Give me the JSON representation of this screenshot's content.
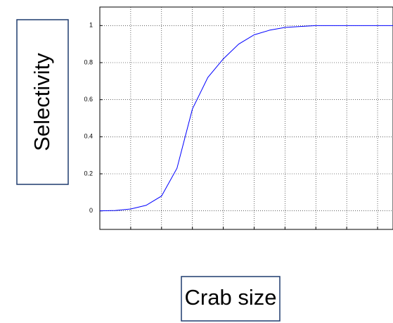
{
  "chart_data": {
    "type": "line",
    "x_label": "Crab size",
    "y_label": "Selectivity",
    "x": [
      0,
      0.5,
      1,
      1.5,
      2,
      2.5,
      3,
      3.5,
      4,
      4.5,
      5,
      5.5,
      6,
      6.5,
      7,
      7.5,
      8,
      8.5,
      9,
      9.5
    ],
    "series": [
      {
        "color": "#0000ff",
        "values": [
          0,
          0.002,
          0.01,
          0.03,
          0.08,
          0.23,
          0.55,
          0.72,
          0.82,
          0.9,
          0.95,
          0.975,
          0.99,
          0.995,
          1,
          1,
          1,
          1,
          1,
          1
        ]
      }
    ],
    "xlim": [
      0,
      9.5
    ],
    "xticks": [
      1,
      2,
      3,
      4,
      5,
      6,
      7,
      8,
      9
    ],
    "ylim": [
      -0.1,
      1.1
    ],
    "yticks": [
      0,
      0.2,
      0.4,
      0.6,
      0.8,
      1
    ],
    "grid": true
  }
}
